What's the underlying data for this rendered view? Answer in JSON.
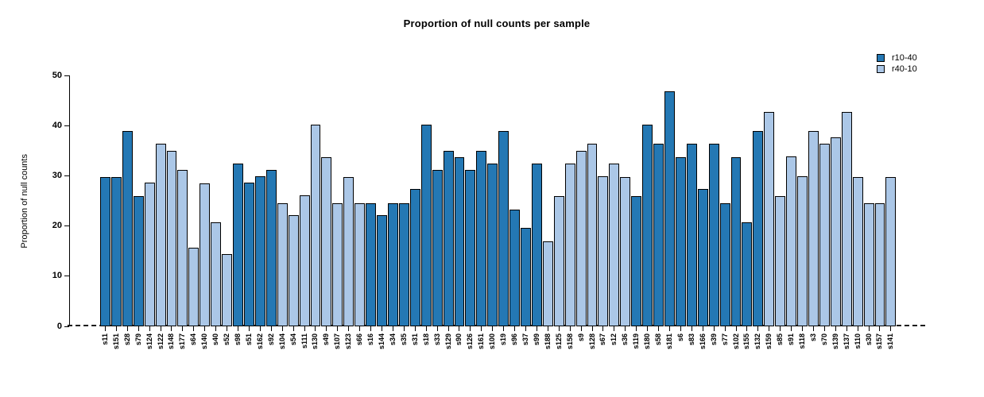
{
  "chart_data": {
    "type": "bar",
    "title": "Proportion of null counts per sample",
    "xlabel": "",
    "ylabel": "Proportion of null counts",
    "ylim": [
      0,
      50
    ],
    "yticks": [
      0,
      10,
      20,
      30,
      40,
      50
    ],
    "grid": false,
    "legend_position": "top-right",
    "zero_line_style": "dashed",
    "series": [
      {
        "name": "r10-40",
        "color": "#2478b4"
      },
      {
        "name": "r40-10",
        "color": "#abc7e7"
      }
    ],
    "bars": [
      {
        "label": "s11",
        "value": 29.8,
        "series": "r10-40"
      },
      {
        "label": "s151",
        "value": 29.8,
        "series": "r10-40"
      },
      {
        "label": "s28",
        "value": 39.0,
        "series": "r10-40"
      },
      {
        "label": "s79",
        "value": 26.0,
        "series": "r10-40"
      },
      {
        "label": "s124",
        "value": 28.6,
        "series": "r40-10"
      },
      {
        "label": "s122",
        "value": 36.4,
        "series": "r40-10"
      },
      {
        "label": "s148",
        "value": 35.0,
        "series": "r40-10"
      },
      {
        "label": "s177",
        "value": 31.2,
        "series": "r40-10"
      },
      {
        "label": "s64",
        "value": 15.6,
        "series": "r40-10"
      },
      {
        "label": "s140",
        "value": 28.5,
        "series": "r40-10"
      },
      {
        "label": "s40",
        "value": 20.8,
        "series": "r40-10"
      },
      {
        "label": "s52",
        "value": 14.4,
        "series": "r40-10"
      },
      {
        "label": "s98",
        "value": 32.5,
        "series": "r10-40"
      },
      {
        "label": "s51",
        "value": 28.6,
        "series": "r10-40"
      },
      {
        "label": "s162",
        "value": 29.9,
        "series": "r10-40"
      },
      {
        "label": "s92",
        "value": 31.2,
        "series": "r10-40"
      },
      {
        "label": "s104",
        "value": 24.5,
        "series": "r40-10"
      },
      {
        "label": "s54",
        "value": 22.1,
        "series": "r40-10"
      },
      {
        "label": "s111",
        "value": 26.1,
        "series": "r40-10"
      },
      {
        "label": "s130",
        "value": 40.2,
        "series": "r40-10"
      },
      {
        "label": "s49",
        "value": 33.7,
        "series": "r40-10"
      },
      {
        "label": "s107",
        "value": 24.6,
        "series": "r40-10"
      },
      {
        "label": "s123",
        "value": 29.8,
        "series": "r40-10"
      },
      {
        "label": "s66",
        "value": 24.6,
        "series": "r40-10"
      },
      {
        "label": "s16",
        "value": 24.6,
        "series": "r10-40"
      },
      {
        "label": "s144",
        "value": 22.1,
        "series": "r10-40"
      },
      {
        "label": "s34",
        "value": 24.6,
        "series": "r10-40"
      },
      {
        "label": "s35",
        "value": 24.6,
        "series": "r10-40"
      },
      {
        "label": "s31",
        "value": 27.3,
        "series": "r10-40"
      },
      {
        "label": "s18",
        "value": 40.2,
        "series": "r10-40"
      },
      {
        "label": "s33",
        "value": 31.2,
        "series": "r10-40"
      },
      {
        "label": "s129",
        "value": 35.0,
        "series": "r10-40"
      },
      {
        "label": "s90",
        "value": 33.7,
        "series": "r10-40"
      },
      {
        "label": "s126",
        "value": 31.2,
        "series": "r10-40"
      },
      {
        "label": "s161",
        "value": 35.0,
        "series": "r10-40"
      },
      {
        "label": "s100",
        "value": 32.4,
        "series": "r10-40"
      },
      {
        "label": "s19",
        "value": 38.9,
        "series": "r10-40"
      },
      {
        "label": "s96",
        "value": 23.3,
        "series": "r10-40"
      },
      {
        "label": "s37",
        "value": 19.6,
        "series": "r10-40"
      },
      {
        "label": "s99",
        "value": 32.4,
        "series": "r10-40"
      },
      {
        "label": "s188",
        "value": 16.9,
        "series": "r40-10"
      },
      {
        "label": "s125",
        "value": 26.0,
        "series": "r40-10"
      },
      {
        "label": "s158",
        "value": 32.4,
        "series": "r40-10"
      },
      {
        "label": "s9",
        "value": 35.0,
        "series": "r40-10"
      },
      {
        "label": "s128",
        "value": 36.4,
        "series": "r40-10"
      },
      {
        "label": "s67",
        "value": 29.9,
        "series": "r40-10"
      },
      {
        "label": "s12",
        "value": 32.4,
        "series": "r40-10"
      },
      {
        "label": "s36",
        "value": 29.8,
        "series": "r40-10"
      },
      {
        "label": "s119",
        "value": 26.0,
        "series": "r10-40"
      },
      {
        "label": "s180",
        "value": 40.2,
        "series": "r10-40"
      },
      {
        "label": "s58",
        "value": 36.4,
        "series": "r10-40"
      },
      {
        "label": "s181",
        "value": 46.8,
        "series": "r10-40"
      },
      {
        "label": "s6",
        "value": 33.7,
        "series": "r10-40"
      },
      {
        "label": "s83",
        "value": 36.4,
        "series": "r10-40"
      },
      {
        "label": "s166",
        "value": 27.3,
        "series": "r10-40"
      },
      {
        "label": "s39",
        "value": 36.4,
        "series": "r10-40"
      },
      {
        "label": "s77",
        "value": 24.6,
        "series": "r10-40"
      },
      {
        "label": "s102",
        "value": 33.7,
        "series": "r10-40"
      },
      {
        "label": "s155",
        "value": 20.8,
        "series": "r10-40"
      },
      {
        "label": "s132",
        "value": 38.9,
        "series": "r10-40"
      },
      {
        "label": "s159",
        "value": 42.8,
        "series": "r40-10"
      },
      {
        "label": "s85",
        "value": 26.0,
        "series": "r40-10"
      },
      {
        "label": "s91",
        "value": 33.8,
        "series": "r40-10"
      },
      {
        "label": "s118",
        "value": 29.9,
        "series": "r40-10"
      },
      {
        "label": "s3",
        "value": 38.9,
        "series": "r40-10"
      },
      {
        "label": "s70",
        "value": 36.4,
        "series": "r40-10"
      },
      {
        "label": "s139",
        "value": 37.6,
        "series": "r40-10"
      },
      {
        "label": "s137",
        "value": 42.8,
        "series": "r40-10"
      },
      {
        "label": "s110",
        "value": 29.8,
        "series": "r40-10"
      },
      {
        "label": "s30",
        "value": 24.5,
        "series": "r40-10"
      },
      {
        "label": "s157",
        "value": 24.6,
        "series": "r40-10"
      },
      {
        "label": "s141",
        "value": 29.8,
        "series": "r40-10"
      }
    ]
  }
}
